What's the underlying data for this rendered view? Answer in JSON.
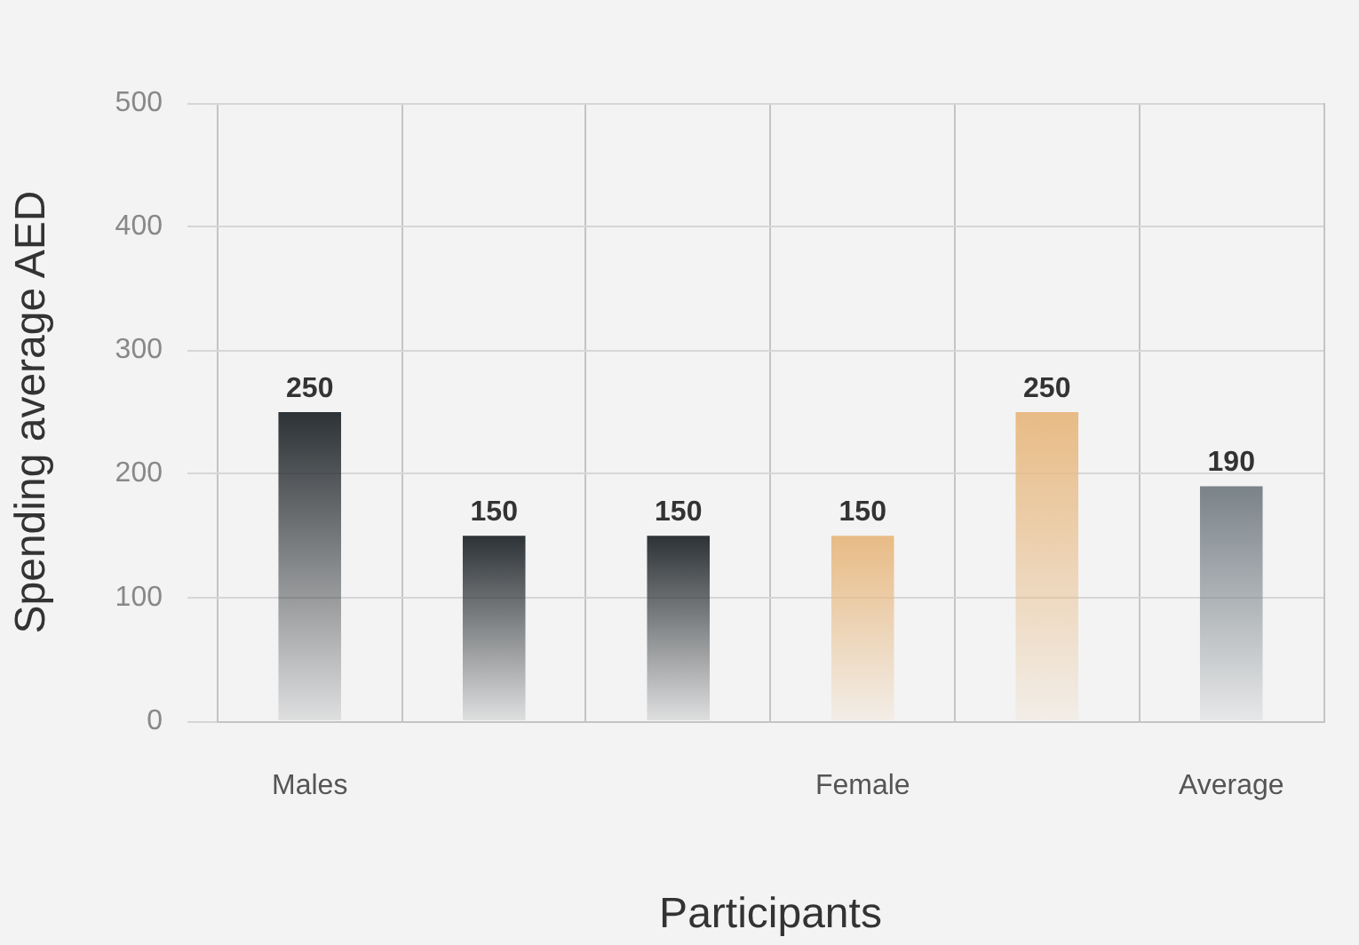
{
  "chart_data": {
    "type": "bar",
    "categories": [
      "Males",
      null,
      null,
      "Female",
      null,
      "Average"
    ],
    "values": [
      250,
      150,
      150,
      150,
      250,
      190
    ],
    "colors": [
      "#2d3236",
      "#2d3236",
      "#2d3236",
      "#e8bb85",
      "#e8bb85",
      "#7a8389"
    ],
    "xlabel": "Participants",
    "ylabel": "Spending average AED",
    "ylim": [
      0,
      500
    ],
    "yticks": [
      0,
      100,
      200,
      300,
      400,
      500
    ],
    "grid": true,
    "data_labels": true
  }
}
